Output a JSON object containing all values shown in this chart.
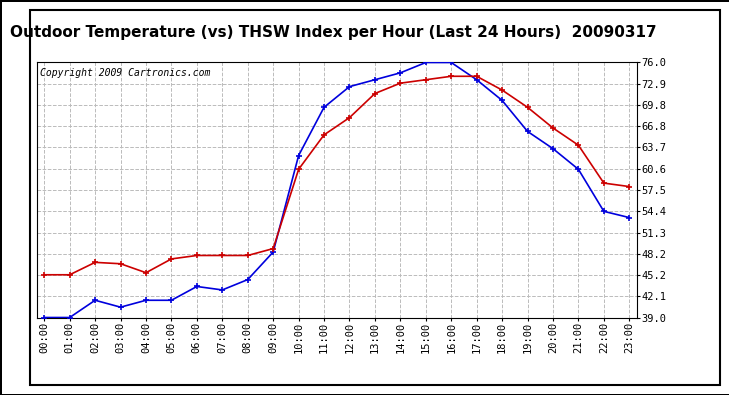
{
  "title": "Outdoor Temperature (vs) THSW Index per Hour (Last 24 Hours)  20090317",
  "copyright": "Copyright 2009 Cartronics.com",
  "hours": [
    "00:00",
    "01:00",
    "02:00",
    "03:00",
    "04:00",
    "05:00",
    "06:00",
    "07:00",
    "08:00",
    "09:00",
    "10:00",
    "11:00",
    "12:00",
    "13:00",
    "14:00",
    "15:00",
    "16:00",
    "17:00",
    "18:00",
    "19:00",
    "20:00",
    "21:00",
    "22:00",
    "23:00"
  ],
  "temp_blue": [
    39.0,
    39.0,
    41.5,
    40.5,
    41.5,
    41.5,
    43.5,
    43.0,
    44.5,
    48.5,
    62.5,
    69.5,
    72.5,
    73.5,
    74.5,
    76.0,
    76.0,
    73.5,
    70.5,
    66.0,
    63.5,
    60.5,
    54.4,
    53.5
  ],
  "temp_red": [
    45.2,
    45.2,
    47.0,
    46.8,
    45.5,
    47.5,
    48.0,
    48.0,
    48.0,
    49.0,
    60.5,
    65.5,
    68.0,
    71.5,
    73.0,
    73.5,
    74.0,
    74.0,
    72.0,
    69.5,
    66.5,
    64.0,
    58.5,
    58.0
  ],
  "ylim_min": 39.0,
  "ylim_max": 76.0,
  "yticks": [
    39.0,
    42.1,
    45.2,
    48.2,
    51.3,
    54.4,
    57.5,
    60.6,
    63.7,
    66.8,
    69.8,
    72.9,
    76.0
  ],
  "blue_color": "#0000dd",
  "red_color": "#cc0000",
  "background_color": "#ffffff",
  "grid_color": "#bbbbbb",
  "title_fontsize": 11,
  "copyright_fontsize": 7,
  "tick_fontsize": 7.5
}
